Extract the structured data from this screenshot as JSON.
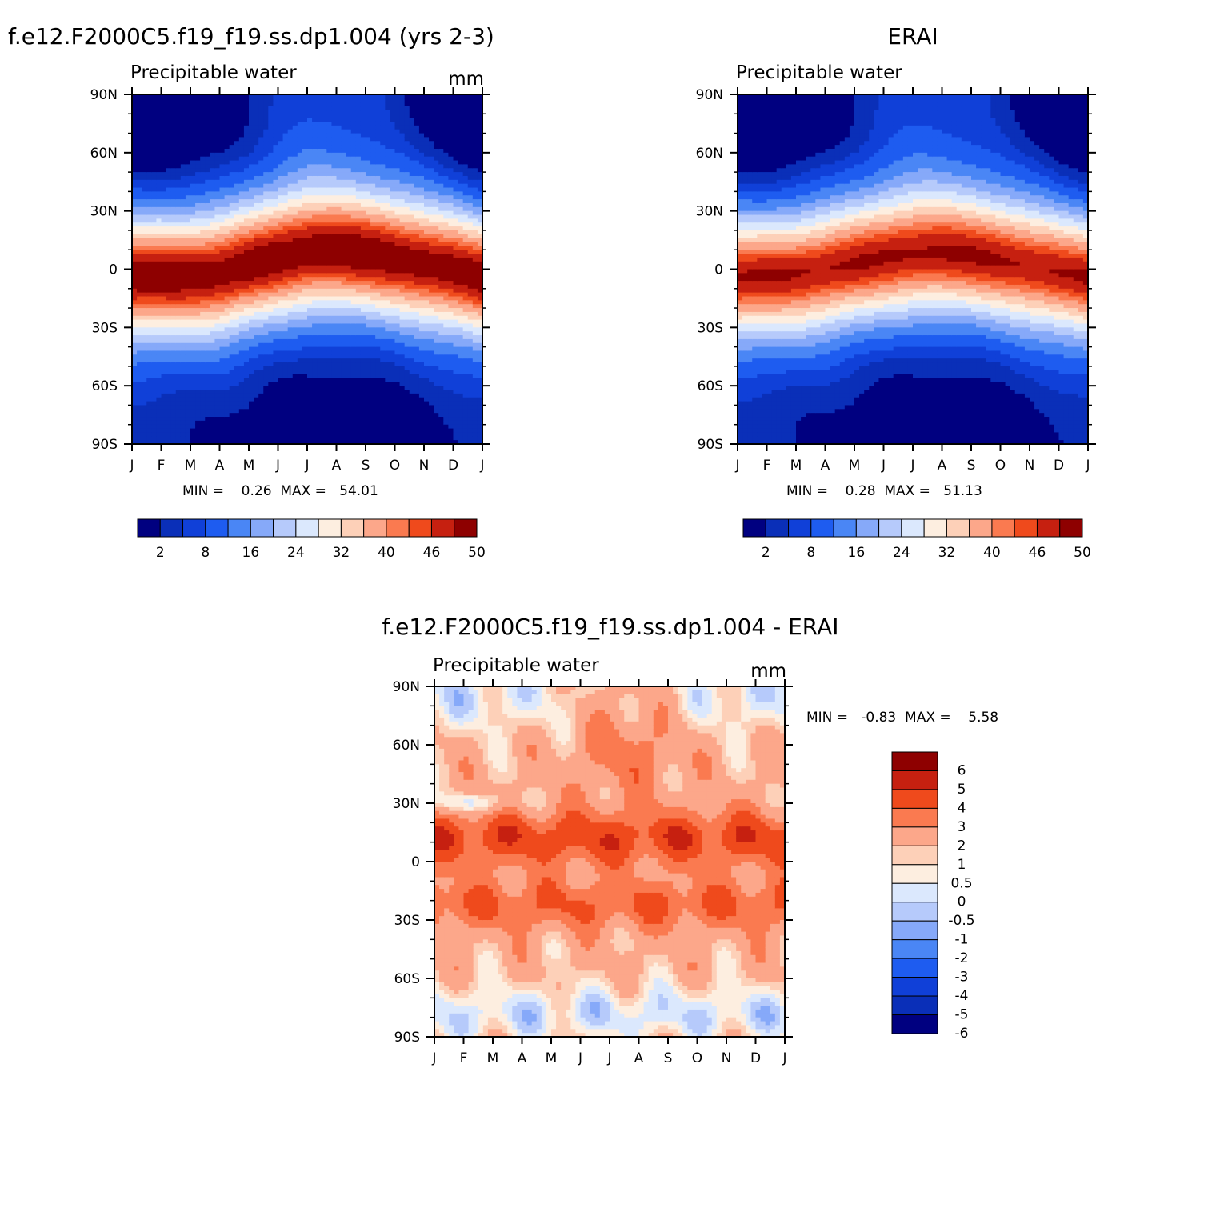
{
  "colors": {
    "abs_levels": [
      "#000080",
      "#0a2fb8",
      "#1040d8",
      "#1e5cf0",
      "#4a86f5",
      "#86a9f9",
      "#b6cafb",
      "#dbe8fd",
      "#fdeee0",
      "#fdd0b8",
      "#fca78a",
      "#fa7a50",
      "#ef4a1c",
      "#c62010",
      "#8e0000"
    ],
    "diff_levels": [
      "#000080",
      "#0a2fb8",
      "#1040d8",
      "#1e5cf0",
      "#4a86f5",
      "#86a9f9",
      "#b6cafb",
      "#dbe8fd",
      "#fdeee0",
      "#fdd0b8",
      "#fca78a",
      "#fa7a50",
      "#ef4a1c",
      "#c62010",
      "#8e0000"
    ]
  },
  "panels": {
    "model": {
      "title": "f.e12.F2000C5.f19_f19.ss.dp1.004 (yrs 2-3)",
      "left_label": "Precipitable water",
      "right_label": "mm",
      "min_max": "MIN =    0.26  MAX =   54.01"
    },
    "erai": {
      "title": "ERAI",
      "left_label": "Precipitable water",
      "right_label": "",
      "min_max": "MIN =    0.28  MAX =   51.13"
    },
    "diff": {
      "title": "f.e12.F2000C5.f19_f19.ss.dp1.004 - ERAI",
      "left_label": "Precipitable water",
      "right_label": "mm",
      "min_max": "MIN =   -0.83  MAX =    5.58"
    }
  },
  "chart_data": [
    {
      "type": "heatmap",
      "name": "model",
      "title": "f.e12.F2000C5.f19_f19.ss.dp1.004 (yrs 2-3)",
      "subtitle": "Precipitable water",
      "units": "mm",
      "x_tick_labels": [
        "J",
        "F",
        "M",
        "A",
        "M",
        "J",
        "J",
        "A",
        "S",
        "O",
        "N",
        "D",
        "J"
      ],
      "y_tick_labels": [
        "90N",
        "60N",
        "30N",
        "0",
        "30S",
        "60S",
        "90S"
      ],
      "colorbar_labels": [
        "2",
        "8",
        "16",
        "24",
        "32",
        "40",
        "46",
        "50"
      ],
      "min": 0.26,
      "max": 54.01,
      "model": {
        "itcz_lat": [
          -4,
          -3,
          -3,
          -2,
          2,
          6,
          9,
          9,
          8,
          6,
          3,
          0,
          -4
        ],
        "peak": 54,
        "amp_lo": 4,
        "amp_hi": 8
      }
    },
    {
      "type": "heatmap",
      "name": "erai",
      "title": "ERAI",
      "subtitle": "Precipitable water",
      "x_tick_labels": [
        "J",
        "F",
        "M",
        "A",
        "M",
        "J",
        "J",
        "A",
        "S",
        "O",
        "N",
        "D",
        "J"
      ],
      "y_tick_labels": [
        "90N",
        "60N",
        "30N",
        "0",
        "30S",
        "60S",
        "90S"
      ],
      "colorbar_labels": [
        "2",
        "8",
        "16",
        "24",
        "32",
        "40",
        "46",
        "50"
      ],
      "min": 0.28,
      "max": 51.13,
      "model": {
        "itcz_lat": [
          -4,
          -3,
          -2,
          0,
          3,
          6,
          8,
          8,
          7,
          5,
          2,
          -1,
          -4
        ],
        "peak": 50.5,
        "amp_lo": 4,
        "amp_hi": 8
      }
    },
    {
      "type": "heatmap",
      "name": "diff",
      "title": "f.e12.F2000C5.f19_f19.ss.dp1.004 - ERAI",
      "subtitle": "Precipitable water",
      "units": "mm",
      "x_tick_labels": [
        "J",
        "F",
        "M",
        "A",
        "M",
        "J",
        "J",
        "A",
        "S",
        "O",
        "N",
        "D",
        "J"
      ],
      "y_tick_labels": [
        "90N",
        "60N",
        "30N",
        "0",
        "30S",
        "60S",
        "90S"
      ],
      "colorbar_labels": [
        "6",
        "5",
        "4",
        "3",
        "2",
        "1",
        "0.5",
        "0",
        "-0.5",
        "-1",
        "-2",
        "-3",
        "-4",
        "-5",
        "-6"
      ],
      "min": -0.83,
      "max": 5.58
    }
  ]
}
